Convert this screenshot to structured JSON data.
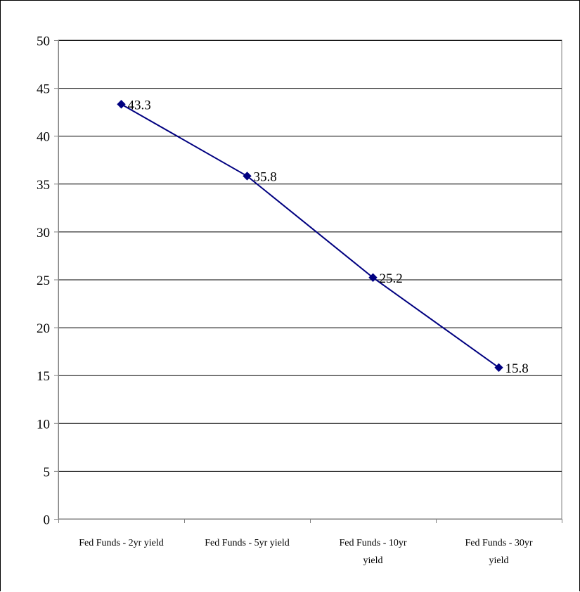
{
  "chart_data": {
    "type": "line",
    "title": "",
    "xlabel": "",
    "ylabel": "",
    "categories": [
      [
        "Fed Funds - 2yr yield"
      ],
      [
        "Fed Funds - 5yr yield"
      ],
      [
        "Fed Funds - 10yr",
        "yield"
      ],
      [
        "Fed Funds - 30yr",
        "yield"
      ]
    ],
    "series": [
      {
        "values": [
          43.3,
          35.8,
          25.2,
          15.8
        ],
        "data_labels": [
          "43.3",
          "35.8",
          "25.2",
          "15.8"
        ]
      }
    ],
    "ylim": [
      0,
      50
    ],
    "yticks": [
      0,
      5,
      10,
      15,
      20,
      25,
      30,
      35,
      40,
      45,
      50
    ],
    "ytick_labels": [
      "0",
      "5",
      "10",
      "15",
      "20",
      "25",
      "30",
      "35",
      "40",
      "45",
      "50"
    ],
    "grid": true,
    "legend": "none",
    "colors": {
      "series": "#000080",
      "grid": "#000000",
      "axis": "#808080"
    }
  }
}
